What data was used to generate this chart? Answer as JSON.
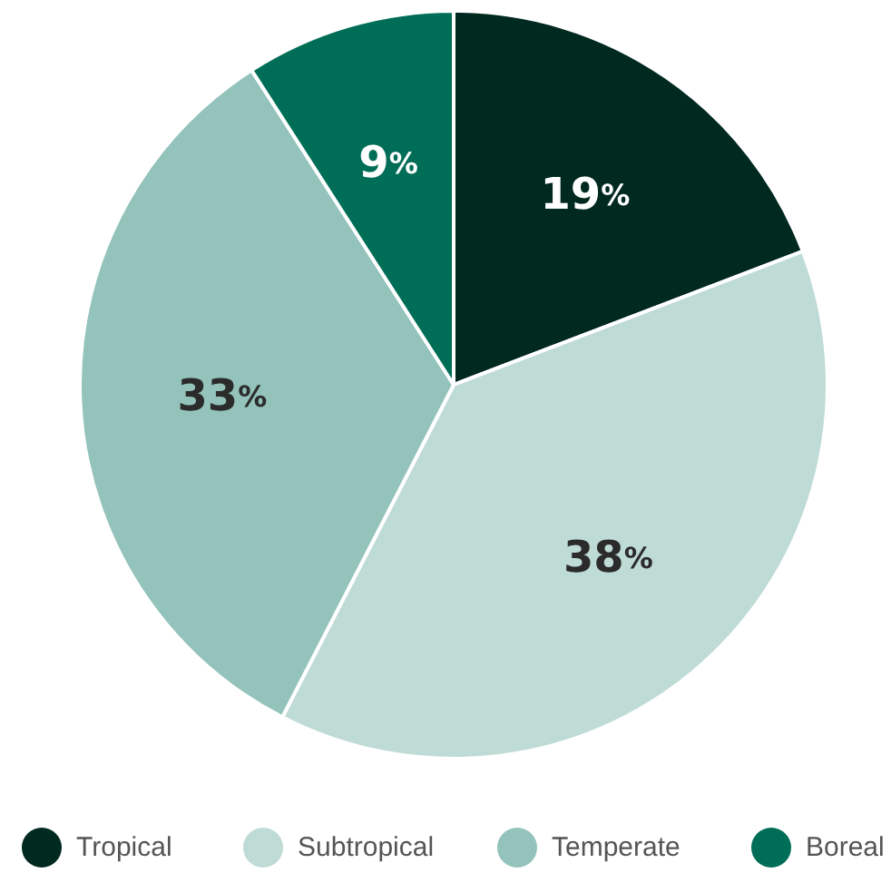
{
  "chart_data": {
    "type": "pie",
    "categories": [
      "Tropical",
      "Subtropical",
      "Temperate",
      "Boreal"
    ],
    "values": [
      19,
      38,
      33,
      9
    ],
    "colors": [
      "#00291f",
      "#bfdbd5",
      "#93c3bb",
      "#006e57"
    ],
    "value_labels": [
      "19%",
      "38%",
      "33%",
      "9%"
    ],
    "legend": "bottom"
  }
}
